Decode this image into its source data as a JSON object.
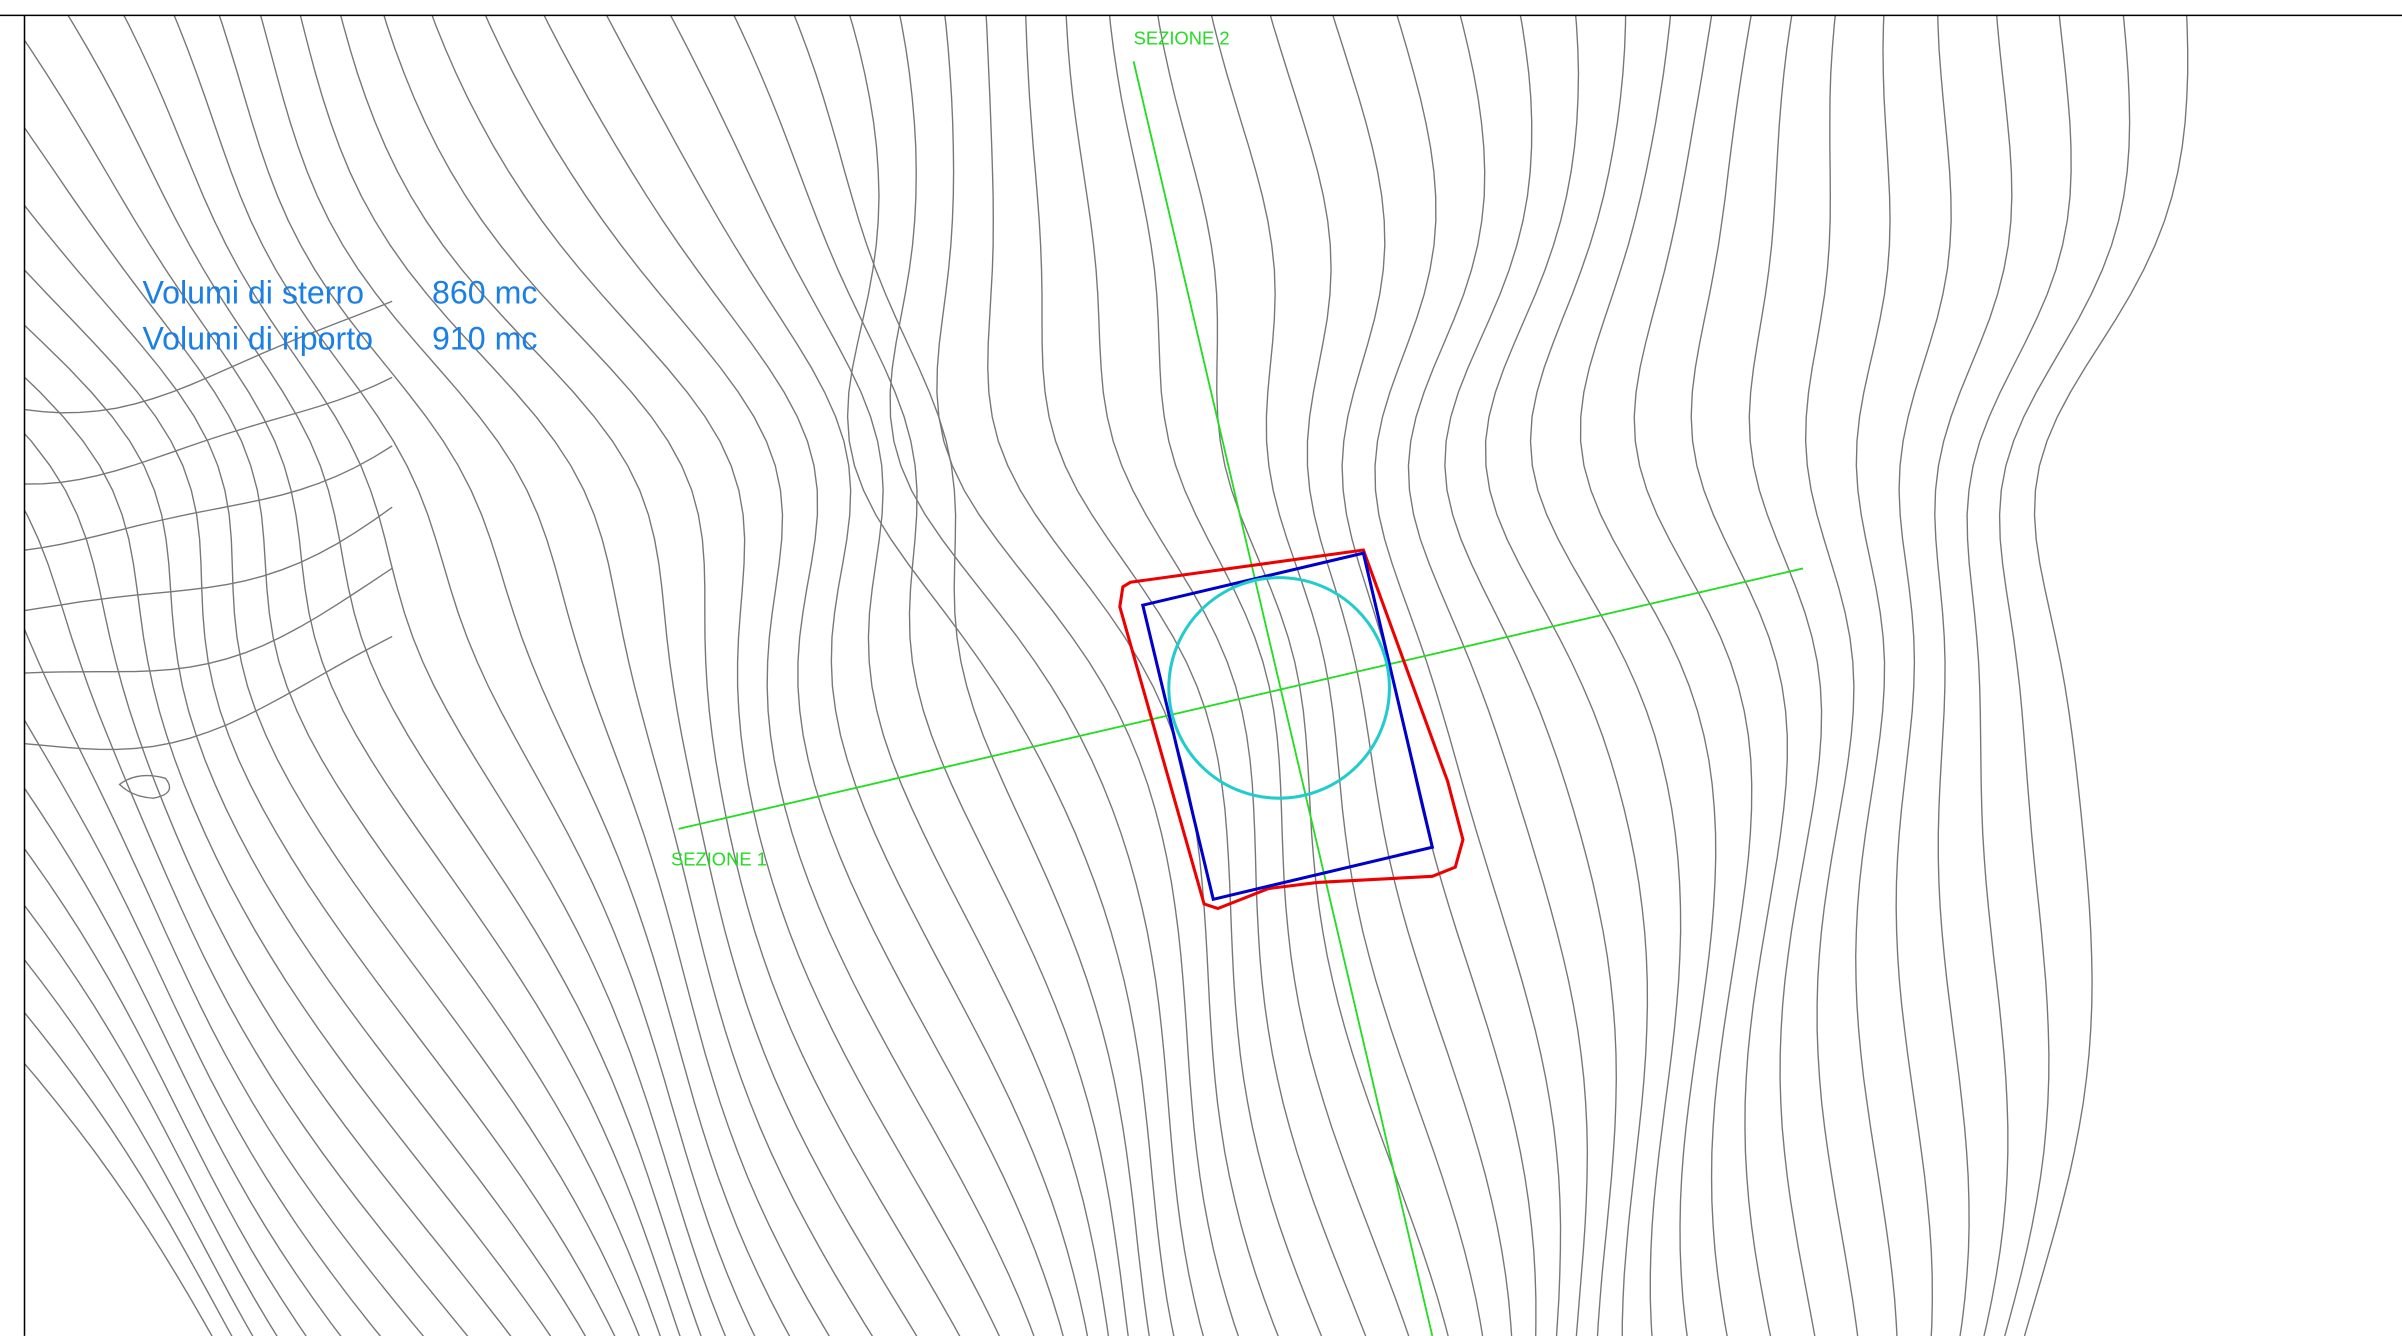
{
  "volumes": {
    "rows": [
      {
        "label": "Volumi di sterro",
        "value": "860 mc"
      },
      {
        "label": "Volumi di riporto",
        "value": "910 mc"
      }
    ]
  },
  "sections": [
    {
      "label": "SEZIONE 1"
    },
    {
      "label": "SEZIONE 2"
    }
  ]
}
